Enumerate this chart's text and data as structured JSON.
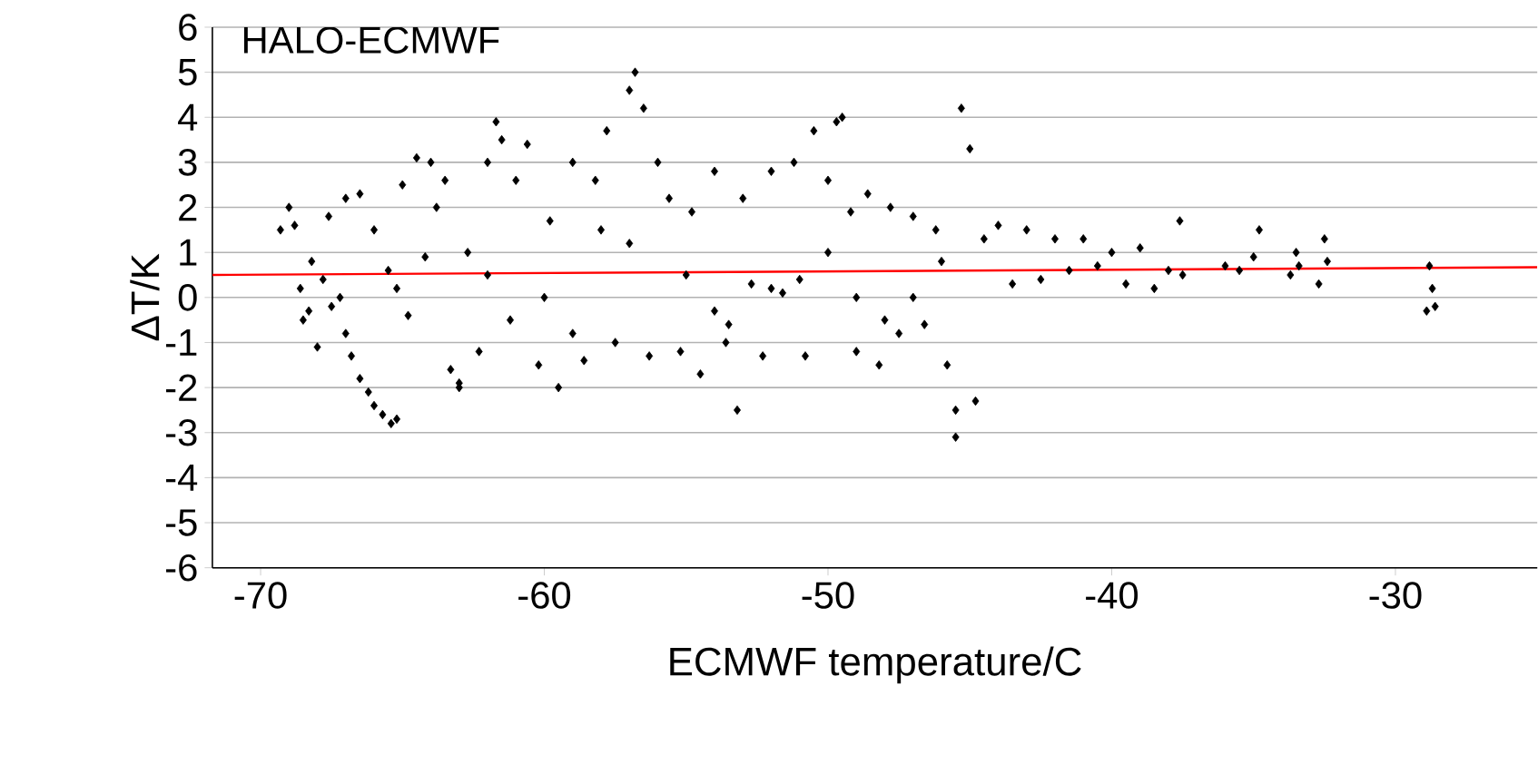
{
  "chart_data": {
    "type": "scatter",
    "xlabel": "ECMWF temperature/C",
    "ylabel": "ΔT/K",
    "annotations": [
      "HALO-ECMWF"
    ],
    "xlim": [
      -71.7,
      -25
    ],
    "ylim": [
      -6,
      6
    ],
    "xticks": [
      -70,
      -60,
      -50,
      -40,
      -30
    ],
    "yticks": [
      -6,
      -5,
      -4,
      -3,
      -2,
      -1,
      0,
      1,
      2,
      3,
      4,
      5,
      6
    ],
    "grid": "y",
    "marker": "diamond",
    "series": [
      {
        "color": "#000000",
        "x": [
          -69.3,
          -69.0,
          -68.8,
          -68.6,
          -68.5,
          -68.3,
          -68.2,
          -68.0,
          -67.8,
          -67.5,
          -67.2,
          -67.0,
          -66.8,
          -66.5,
          -66.2,
          -66.0,
          -65.7,
          -65.4,
          -65.2,
          -67.6,
          -67.0,
          -66.5,
          -66.0,
          -65.5,
          -65.0,
          -64.5,
          -64.0,
          -63.5,
          -65.2,
          -64.8,
          -64.2,
          -63.8,
          -63.3,
          -63.0,
          -62.7,
          -62.3,
          -62.0,
          -61.7,
          -61.5,
          -61.2,
          -61.0,
          -60.6,
          -60.2,
          -59.8,
          -59.5,
          -59.0,
          -58.6,
          -58.2,
          -57.8,
          -57.5,
          -57.0,
          -56.8,
          -56.5,
          -56.3,
          -56.0,
          -55.6,
          -55.2,
          -54.8,
          -54.5,
          -54.0,
          -53.6,
          -53.2,
          -53.0,
          -52.7,
          -52.3,
          -52.0,
          -51.6,
          -51.2,
          -50.8,
          -50.5,
          -50.0,
          -49.7,
          -49.5,
          -49.2,
          -49.0,
          -48.6,
          -48.2,
          -47.8,
          -47.5,
          -47.0,
          -46.6,
          -46.2,
          -45.8,
          -45.5,
          -45.3,
          -45.0,
          -44.8,
          -44.5,
          -44.0,
          -43.5,
          -43.0,
          -42.5,
          -42.0,
          -41.5,
          -41.0,
          -40.5,
          -40.0,
          -39.5,
          -39.0,
          -38.5,
          -38.0,
          -37.6,
          -37.5,
          -36.0,
          -35.5,
          -35.0,
          -34.8,
          -33.7,
          -33.5,
          -33.4,
          -32.7,
          -32.5,
          -32.4,
          -28.9,
          -28.8,
          -28.7,
          -28.6,
          -62.0,
          -60.0,
          -58.0,
          -55.0,
          -52.0,
          -50.0,
          -48.0,
          -46.0,
          -57.0,
          -54.0,
          -51.0,
          -47.0,
          -63.0,
          -59.0,
          -53.5,
          -49.0,
          -45.5
        ],
        "values": [
          1.5,
          2.0,
          1.6,
          0.2,
          -0.5,
          -0.3,
          0.8,
          -1.1,
          0.4,
          -0.2,
          0.0,
          -0.8,
          -1.3,
          -1.8,
          -2.1,
          -2.4,
          -2.6,
          -2.8,
          -2.7,
          1.8,
          2.2,
          2.3,
          1.5,
          0.6,
          2.5,
          3.1,
          3.0,
          2.6,
          0.2,
          -0.4,
          0.9,
          2.0,
          -1.6,
          -2.0,
          1.0,
          -1.2,
          3.0,
          3.9,
          3.5,
          -0.5,
          2.6,
          3.4,
          -1.5,
          1.7,
          -2.0,
          3.0,
          -1.4,
          2.6,
          3.7,
          -1.0,
          4.6,
          5.0,
          4.2,
          -1.3,
          3.0,
          2.2,
          -1.2,
          1.9,
          -1.7,
          2.8,
          -1.0,
          -2.5,
          2.2,
          0.3,
          -1.3,
          2.8,
          0.1,
          3.0,
          -1.3,
          3.7,
          2.6,
          3.9,
          4.0,
          1.9,
          -1.2,
          2.3,
          -1.5,
          2.0,
          -0.8,
          1.8,
          -0.6,
          1.5,
          -1.5,
          -3.1,
          4.2,
          3.3,
          -2.3,
          1.3,
          1.6,
          0.3,
          1.5,
          0.4,
          1.3,
          0.6,
          1.3,
          0.7,
          1.0,
          0.3,
          1.1,
          0.2,
          0.6,
          1.7,
          0.5,
          0.7,
          0.6,
          0.9,
          1.5,
          0.5,
          1.0,
          0.7,
          0.3,
          1.3,
          0.8,
          -0.3,
          0.7,
          0.2,
          -0.2,
          0.5,
          0.0,
          1.5,
          0.5,
          0.2,
          1.0,
          -0.5,
          0.8,
          1.2,
          -0.3,
          0.4,
          0.0,
          -1.9,
          -0.8,
          -0.6,
          0.0,
          -2.5
        ]
      },
      {
        "type": "line",
        "marker": "none",
        "color": "#ff0000",
        "x": [
          -71.7,
          -25
        ],
        "values": [
          0.5,
          0.67
        ]
      }
    ]
  }
}
